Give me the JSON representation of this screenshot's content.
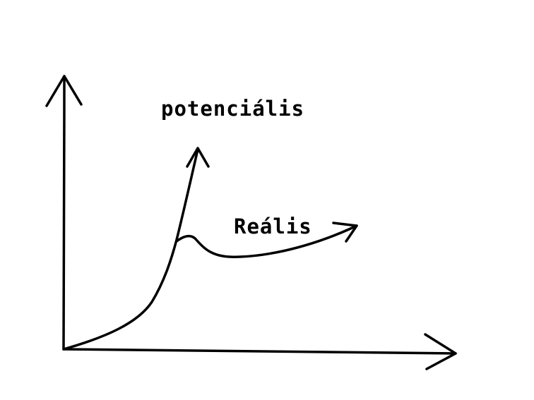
{
  "labels": {
    "potential": "potenciális",
    "real": "Reális"
  },
  "colors": {
    "ink": "#000000",
    "background": "#ffffff"
  }
}
